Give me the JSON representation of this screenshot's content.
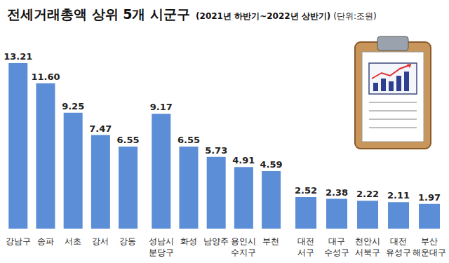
{
  "title": "전세거래총액 상위 5개 시군구",
  "subtitle": "(2021년 하반기~2022년 상반기)",
  "unit": "(단위:조원)",
  "chart_data": [
    {
      "type": "bar",
      "categories": [
        "강남구",
        "송파",
        "서초",
        "강서",
        "강동"
      ],
      "values": [
        13.21,
        11.6,
        9.25,
        7.47,
        6.55
      ],
      "value_labels": [
        "13.21",
        "11.60",
        "9.25",
        "7.47",
        "6.55"
      ],
      "color": "#5b8ed6",
      "ylim": [
        0,
        14
      ],
      "data_labels": true,
      "tick_labels": "x"
    },
    {
      "type": "bar",
      "categories": [
        "성남시 분당구",
        "화성",
        "남양주",
        "용인시 수지구",
        "부천"
      ],
      "values": [
        9.17,
        6.55,
        5.73,
        4.91,
        4.59
      ],
      "color": "#5b8ed6",
      "ylim": [
        0,
        14
      ],
      "data_labels": true,
      "tick_labels": "x"
    },
    {
      "type": "bar",
      "categories": [
        "대전 서구",
        "대구 수성구",
        "천안시 서북구",
        "대전 유성구",
        "부산 해운대구"
      ],
      "values": [
        2.52,
        2.38,
        2.22,
        2.11,
        1.97
      ],
      "color": "#5b8ed6",
      "ylim": [
        0,
        14
      ],
      "data_labels": true,
      "tick_labels": "x"
    }
  ]
}
